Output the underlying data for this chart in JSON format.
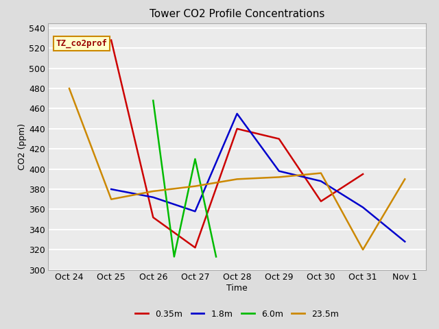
{
  "title": "Tower CO2 Profile Concentrations",
  "xlabel": "Time",
  "ylabel": "CO2 (ppm)",
  "ylim": [
    300,
    545
  ],
  "yticks": [
    300,
    320,
    340,
    360,
    380,
    400,
    420,
    440,
    460,
    480,
    500,
    520,
    540
  ],
  "x_labels": [
    "Oct 24",
    "Oct 25",
    "Oct 26",
    "Oct 27",
    "Oct 28",
    "Oct 29",
    "Oct 30",
    "Oct 31",
    "Nov 1"
  ],
  "x_values": [
    0,
    1,
    2,
    3,
    4,
    5,
    6,
    7,
    8
  ],
  "series": [
    {
      "label": "0.35m",
      "color": "#cc0000",
      "x": [
        1,
        2,
        3,
        4,
        5,
        6,
        7
      ],
      "y": [
        528,
        352,
        322,
        440,
        430,
        368,
        395
      ]
    },
    {
      "label": "1.8m",
      "color": "#0000cc",
      "x": [
        1,
        2,
        3,
        4,
        5,
        6,
        7,
        8
      ],
      "y": [
        380,
        372,
        358,
        455,
        398,
        388,
        362,
        328
      ]
    },
    {
      "label": "6.0m",
      "color": "#00bb00",
      "x": [
        2,
        2.5,
        3,
        3.5
      ],
      "y": [
        468,
        313,
        410,
        313
      ]
    },
    {
      "label": "23.5m",
      "color": "#cc8800",
      "x": [
        0,
        1,
        2,
        3,
        4,
        5,
        6,
        7,
        8
      ],
      "y": [
        480,
        370,
        378,
        383,
        390,
        392,
        396,
        320,
        390
      ]
    }
  ],
  "annotation_text": "TZ_co2prof",
  "bg_color": "#dddddd",
  "plot_bg_color": "#ebebeb",
  "grid_color": "#ffffff",
  "spine_color": "#aaaaaa"
}
